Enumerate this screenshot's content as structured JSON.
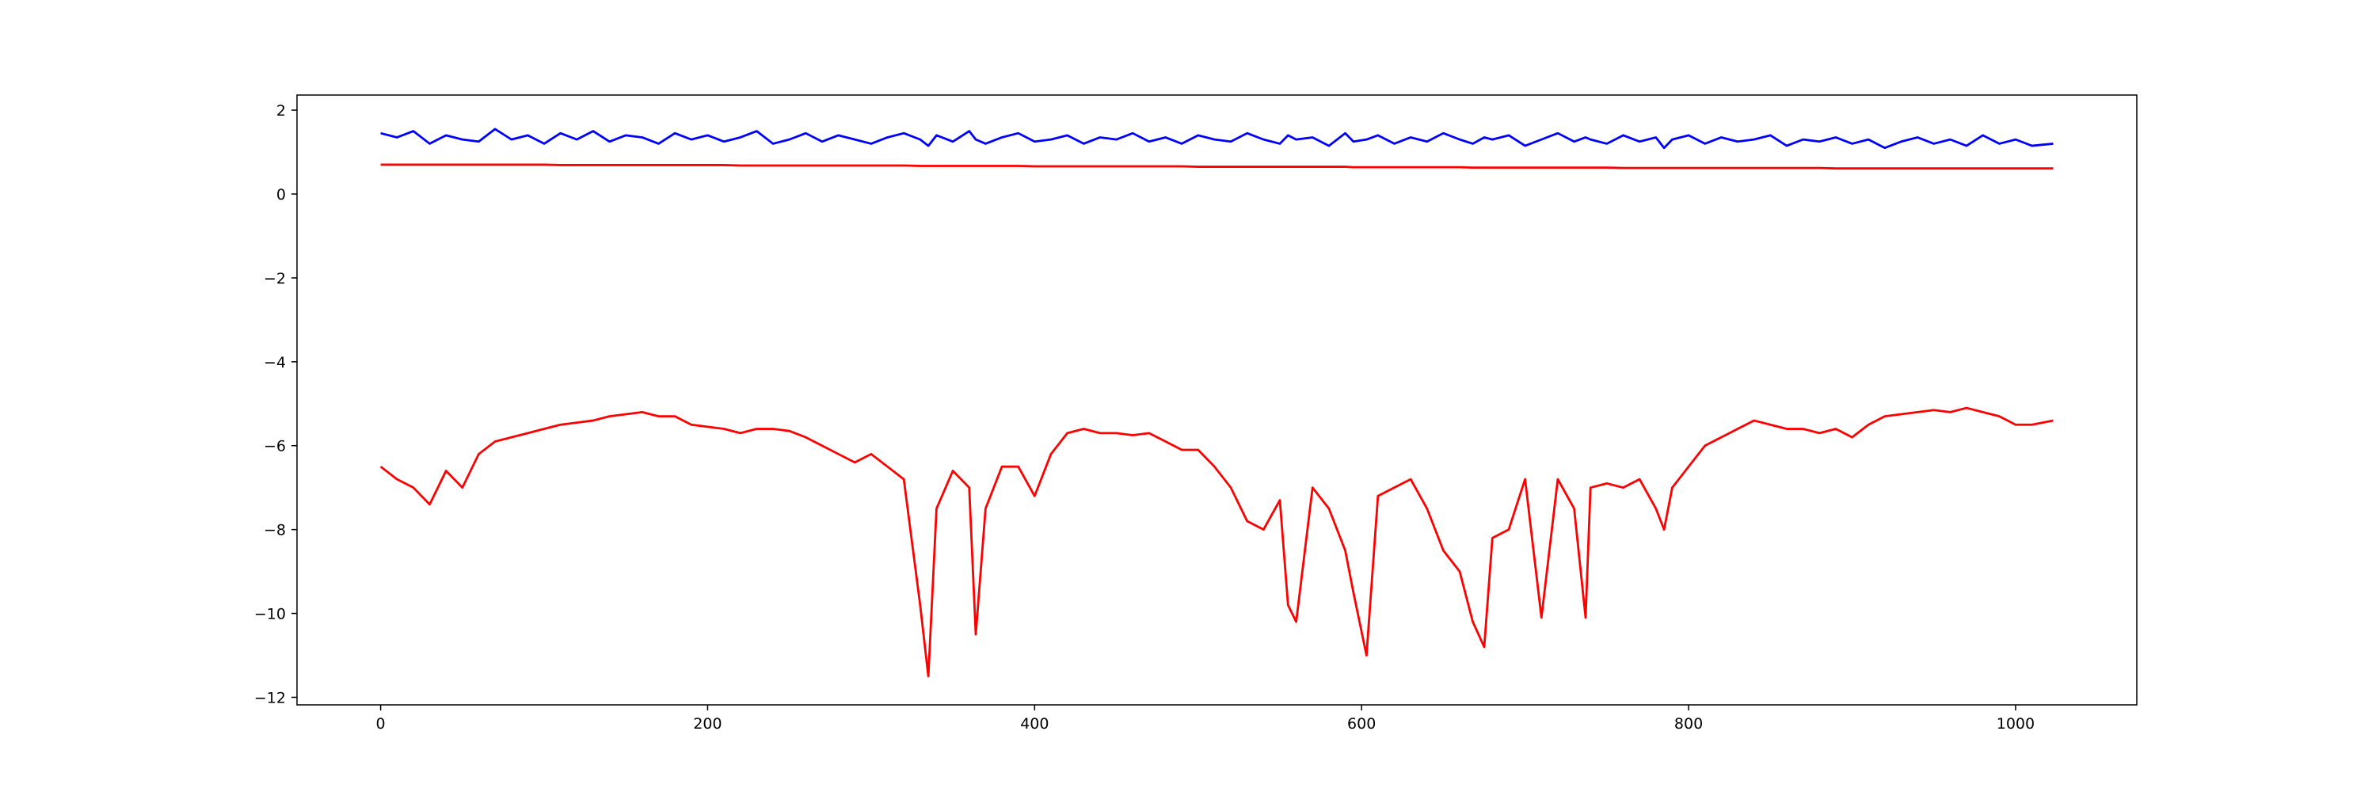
{
  "chart_data": {
    "type": "line",
    "x": [
      0,
      10,
      20,
      30,
      40,
      50,
      60,
      70,
      80,
      90,
      100,
      110,
      120,
      130,
      140,
      150,
      160,
      170,
      180,
      190,
      200,
      210,
      220,
      230,
      240,
      250,
      260,
      270,
      280,
      290,
      300,
      310,
      320,
      330,
      335,
      340,
      350,
      360,
      364,
      370,
      380,
      390,
      400,
      410,
      420,
      430,
      440,
      450,
      460,
      470,
      480,
      490,
      500,
      510,
      520,
      530,
      540,
      550,
      555,
      560,
      570,
      580,
      590,
      595,
      603,
      610,
      620,
      630,
      640,
      650,
      660,
      668,
      675,
      680,
      690,
      700,
      710,
      720,
      730,
      737,
      740,
      750,
      760,
      770,
      780,
      785,
      790,
      800,
      810,
      820,
      830,
      840,
      850,
      860,
      870,
      880,
      890,
      900,
      910,
      920,
      930,
      940,
      950,
      960,
      970,
      980,
      990,
      1000,
      1010,
      1023
    ],
    "series": [
      {
        "color": "#0000ff",
        "values": [
          1.45,
          1.35,
          1.5,
          1.2,
          1.4,
          1.3,
          1.25,
          1.55,
          1.3,
          1.4,
          1.2,
          1.45,
          1.3,
          1.5,
          1.25,
          1.4,
          1.35,
          1.2,
          1.45,
          1.3,
          1.4,
          1.25,
          1.35,
          1.5,
          1.2,
          1.3,
          1.45,
          1.25,
          1.4,
          1.3,
          1.2,
          1.35,
          1.45,
          1.3,
          1.15,
          1.4,
          1.25,
          1.5,
          1.3,
          1.2,
          1.35,
          1.45,
          1.25,
          1.3,
          1.4,
          1.2,
          1.35,
          1.3,
          1.45,
          1.25,
          1.35,
          1.2,
          1.4,
          1.3,
          1.25,
          1.45,
          1.3,
          1.2,
          1.4,
          1.3,
          1.35,
          1.15,
          1.45,
          1.25,
          1.3,
          1.4,
          1.2,
          1.35,
          1.25,
          1.45,
          1.3,
          1.2,
          1.35,
          1.3,
          1.4,
          1.15,
          1.3,
          1.45,
          1.25,
          1.35,
          1.3,
          1.2,
          1.4,
          1.25,
          1.35,
          1.1,
          1.3,
          1.4,
          1.2,
          1.35,
          1.25,
          1.3,
          1.4,
          1.15,
          1.3,
          1.25,
          1.35,
          1.2,
          1.3,
          1.1,
          1.25,
          1.35,
          1.2,
          1.3,
          1.15,
          1.4,
          1.2,
          1.3,
          1.15,
          1.2
        ]
      },
      {
        "color": "#ff0000",
        "values": [
          0.7,
          0.7,
          0.7,
          0.7,
          0.7,
          0.7,
          0.7,
          0.7,
          0.7,
          0.7,
          0.7,
          0.69,
          0.69,
          0.69,
          0.69,
          0.69,
          0.69,
          0.69,
          0.69,
          0.69,
          0.69,
          0.69,
          0.68,
          0.68,
          0.68,
          0.68,
          0.68,
          0.68,
          0.68,
          0.68,
          0.68,
          0.68,
          0.68,
          0.67,
          0.67,
          0.67,
          0.67,
          0.67,
          0.67,
          0.67,
          0.67,
          0.67,
          0.66,
          0.66,
          0.66,
          0.66,
          0.66,
          0.66,
          0.66,
          0.66,
          0.66,
          0.66,
          0.65,
          0.65,
          0.65,
          0.65,
          0.65,
          0.65,
          0.65,
          0.65,
          0.65,
          0.65,
          0.65,
          0.64,
          0.64,
          0.64,
          0.64,
          0.64,
          0.64,
          0.64,
          0.64,
          0.63,
          0.63,
          0.63,
          0.63,
          0.63,
          0.63,
          0.63,
          0.63,
          0.63,
          0.63,
          0.63,
          0.62,
          0.62,
          0.62,
          0.62,
          0.62,
          0.62,
          0.62,
          0.62,
          0.62,
          0.62,
          0.62,
          0.62,
          0.62,
          0.62,
          0.61,
          0.61,
          0.61,
          0.61,
          0.61,
          0.61,
          0.61,
          0.61,
          0.61,
          0.61,
          0.61,
          0.61,
          0.61,
          0.61
        ]
      },
      {
        "color": "#ff0000",
        "values": [
          -6.5,
          -6.8,
          -7.0,
          -7.4,
          -6.6,
          -7.0,
          -6.2,
          -5.9,
          -5.8,
          -5.7,
          -5.6,
          -5.5,
          -5.45,
          -5.4,
          -5.3,
          -5.25,
          -5.2,
          -5.3,
          -5.3,
          -5.5,
          -5.55,
          -5.6,
          -5.7,
          -5.6,
          -5.6,
          -5.65,
          -5.8,
          -6.0,
          -6.2,
          -6.4,
          -6.2,
          -6.5,
          -6.8,
          -9.8,
          -11.5,
          -7.5,
          -6.6,
          -7.0,
          -10.5,
          -7.5,
          -6.5,
          -6.5,
          -7.2,
          -6.2,
          -5.7,
          -5.6,
          -5.7,
          -5.7,
          -5.75,
          -5.7,
          -5.9,
          -6.1,
          -6.1,
          -6.5,
          -7.0,
          -7.8,
          -8.0,
          -7.3,
          -9.8,
          -10.2,
          -7.0,
          -7.5,
          -8.5,
          -9.5,
          -11.0,
          -7.2,
          -7.0,
          -6.8,
          -7.5,
          -8.5,
          -9.0,
          -10.2,
          -10.8,
          -8.2,
          -8.0,
          -6.8,
          -10.1,
          -6.8,
          -7.5,
          -10.1,
          -7.0,
          -6.9,
          -7.0,
          -6.8,
          -7.5,
          -8.0,
          -7.0,
          -6.5,
          -6.0,
          -5.8,
          -5.6,
          -5.4,
          -5.5,
          -5.6,
          -5.6,
          -5.7,
          -5.6,
          -5.8,
          -5.5,
          -5.3,
          -5.25,
          -5.2,
          -5.15,
          -5.2,
          -5.1,
          -5.2,
          -5.3,
          -5.5,
          -5.5,
          -5.4
        ]
      }
    ],
    "xlim": [
      -51.15,
      1074.15
    ],
    "xticks": [
      0,
      200,
      400,
      600,
      800,
      1000
    ],
    "ylim": [
      -12.18,
      2.36
    ],
    "yticks": [
      {
        "value": -12,
        "label": "−12"
      },
      {
        "value": -10,
        "label": "−10"
      },
      {
        "value": -8,
        "label": "−8"
      },
      {
        "value": -6,
        "label": "−6"
      },
      {
        "value": -4,
        "label": "−4"
      },
      {
        "value": -2,
        "label": "−2"
      },
      0,
      2
    ],
    "grid": false
  }
}
